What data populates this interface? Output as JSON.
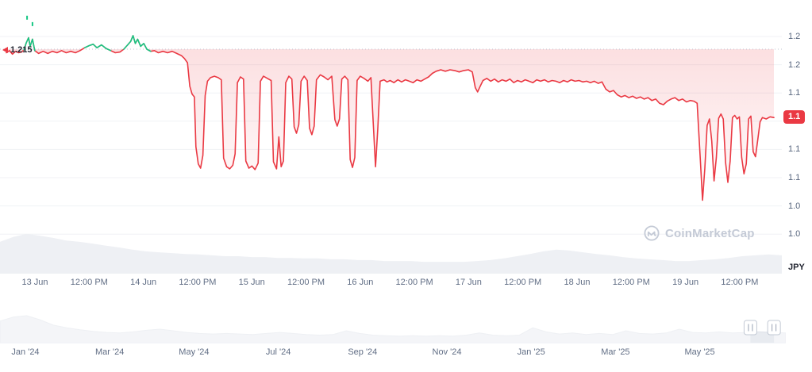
{
  "watermark": {
    "text": "CoinMarketCap"
  },
  "chart_data": {
    "type": "line",
    "y_axis_unit": "JPY",
    "y_axis_labels": [
      "1.2",
      "1.2",
      "1.1",
      "1.1",
      "1.1",
      "1.1",
      "1.0",
      "1.0"
    ],
    "x_axis_labels": [
      "13 Jun",
      "12:00 PM",
      "14 Jun",
      "12:00 PM",
      "15 Jun",
      "12:00 PM",
      "16 Jun",
      "12:00 PM",
      "17 Jun",
      "12:00 PM",
      "18 Jun",
      "12:00 PM",
      "19 Jun",
      "12:00 PM"
    ],
    "annotations": {
      "start_price_label": "1.215",
      "current_price_label": "1.1"
    },
    "reference_price": 1.215,
    "current_price": 1.119,
    "colors": {
      "line_down": "#ea3943",
      "line_up": "#16c784",
      "badge_bg": "#ea3943",
      "grid": "#f0f2f5",
      "ref_line": "#bfc6d2",
      "volume_fill": "#eef0f4",
      "nav_fill": "#e8ebf0",
      "axis_text": "#616e85",
      "watermark": "#c4cad6"
    },
    "series": [
      {
        "name": "price",
        "points": [
          [
            0.0,
            1.21
          ],
          [
            0.004,
            1.213
          ],
          [
            0.008,
            1.208
          ],
          [
            0.012,
            1.212
          ],
          [
            0.016,
            1.21
          ],
          [
            0.02,
            1.211
          ],
          [
            0.023,
            1.214
          ],
          [
            0.026,
            1.224
          ],
          [
            0.029,
            1.231
          ],
          [
            0.031,
            1.219
          ],
          [
            0.034,
            1.229
          ],
          [
            0.037,
            1.213
          ],
          [
            0.042,
            1.209
          ],
          [
            0.048,
            1.212
          ],
          [
            0.054,
            1.209
          ],
          [
            0.06,
            1.212
          ],
          [
            0.066,
            1.21
          ],
          [
            0.072,
            1.213
          ],
          [
            0.078,
            1.21
          ],
          [
            0.084,
            1.212
          ],
          [
            0.09,
            1.21
          ],
          [
            0.096,
            1.213
          ],
          [
            0.102,
            1.217
          ],
          [
            0.108,
            1.22
          ],
          [
            0.113,
            1.222
          ],
          [
            0.118,
            1.217
          ],
          [
            0.124,
            1.221
          ],
          [
            0.13,
            1.216
          ],
          [
            0.136,
            1.213
          ],
          [
            0.142,
            1.21
          ],
          [
            0.148,
            1.211
          ],
          [
            0.153,
            1.215
          ],
          [
            0.158,
            1.221
          ],
          [
            0.162,
            1.226
          ],
          [
            0.165,
            1.234
          ],
          [
            0.168,
            1.223
          ],
          [
            0.171,
            1.229
          ],
          [
            0.175,
            1.219
          ],
          [
            0.179,
            1.223
          ],
          [
            0.183,
            1.215
          ],
          [
            0.188,
            1.212
          ],
          [
            0.193,
            1.213
          ],
          [
            0.198,
            1.21
          ],
          [
            0.204,
            1.212
          ],
          [
            0.21,
            1.21
          ],
          [
            0.216,
            1.212
          ],
          [
            0.222,
            1.209
          ],
          [
            0.228,
            1.206
          ],
          [
            0.232,
            1.202
          ],
          [
            0.236,
            1.196
          ],
          [
            0.239,
            1.163
          ],
          [
            0.242,
            1.152
          ],
          [
            0.245,
            1.148
          ],
          [
            0.247,
            1.078
          ],
          [
            0.25,
            1.054
          ],
          [
            0.253,
            1.048
          ],
          [
            0.256,
            1.066
          ],
          [
            0.259,
            1.15
          ],
          [
            0.262,
            1.17
          ],
          [
            0.266,
            1.175
          ],
          [
            0.271,
            1.177
          ],
          [
            0.276,
            1.175
          ],
          [
            0.28,
            1.172
          ],
          [
            0.283,
            1.062
          ],
          [
            0.287,
            1.05
          ],
          [
            0.291,
            1.047
          ],
          [
            0.295,
            1.052
          ],
          [
            0.298,
            1.068
          ],
          [
            0.301,
            1.168
          ],
          [
            0.305,
            1.176
          ],
          [
            0.309,
            1.173
          ],
          [
            0.312,
            1.058
          ],
          [
            0.316,
            1.048
          ],
          [
            0.32,
            1.051
          ],
          [
            0.324,
            1.046
          ],
          [
            0.328,
            1.055
          ],
          [
            0.331,
            1.17
          ],
          [
            0.335,
            1.177
          ],
          [
            0.34,
            1.174
          ],
          [
            0.345,
            1.171
          ],
          [
            0.348,
            1.057
          ],
          [
            0.352,
            1.047
          ],
          [
            0.355,
            1.092
          ],
          [
            0.358,
            1.05
          ],
          [
            0.361,
            1.058
          ],
          [
            0.364,
            1.168
          ],
          [
            0.368,
            1.177
          ],
          [
            0.372,
            1.173
          ],
          [
            0.375,
            1.106
          ],
          [
            0.378,
            1.097
          ],
          [
            0.381,
            1.109
          ],
          [
            0.384,
            1.17
          ],
          [
            0.388,
            1.177
          ],
          [
            0.392,
            1.171
          ],
          [
            0.395,
            1.104
          ],
          [
            0.398,
            1.095
          ],
          [
            0.401,
            1.107
          ],
          [
            0.404,
            1.172
          ],
          [
            0.409,
            1.179
          ],
          [
            0.414,
            1.176
          ],
          [
            0.419,
            1.172
          ],
          [
            0.424,
            1.177
          ],
          [
            0.428,
            1.116
          ],
          [
            0.431,
            1.107
          ],
          [
            0.434,
            1.117
          ],
          [
            0.437,
            1.173
          ],
          [
            0.441,
            1.177
          ],
          [
            0.445,
            1.172
          ],
          [
            0.448,
            1.06
          ],
          [
            0.451,
            1.049
          ],
          [
            0.454,
            1.063
          ],
          [
            0.457,
            1.171
          ],
          [
            0.461,
            1.177
          ],
          [
            0.466,
            1.174
          ],
          [
            0.471,
            1.17
          ],
          [
            0.475,
            1.175
          ],
          [
            0.478,
            1.112
          ],
          [
            0.481,
            1.05
          ],
          [
            0.484,
            1.104
          ],
          [
            0.487,
            1.17
          ],
          [
            0.492,
            1.172
          ],
          [
            0.496,
            1.169
          ],
          [
            0.5,
            1.171
          ],
          [
            0.505,
            1.168
          ],
          [
            0.51,
            1.172
          ],
          [
            0.515,
            1.169
          ],
          [
            0.52,
            1.172
          ],
          [
            0.525,
            1.17
          ],
          [
            0.53,
            1.168
          ],
          [
            0.535,
            1.172
          ],
          [
            0.54,
            1.17
          ],
          [
            0.545,
            1.173
          ],
          [
            0.55,
            1.176
          ],
          [
            0.555,
            1.181
          ],
          [
            0.56,
            1.184
          ],
          [
            0.566,
            1.186
          ],
          [
            0.572,
            1.184
          ],
          [
            0.578,
            1.186
          ],
          [
            0.584,
            1.185
          ],
          [
            0.59,
            1.183
          ],
          [
            0.596,
            1.185
          ],
          [
            0.602,
            1.186
          ],
          [
            0.607,
            1.183
          ],
          [
            0.611,
            1.161
          ],
          [
            0.614,
            1.155
          ],
          [
            0.617,
            1.162
          ],
          [
            0.621,
            1.171
          ],
          [
            0.626,
            1.174
          ],
          [
            0.631,
            1.17
          ],
          [
            0.636,
            1.173
          ],
          [
            0.641,
            1.169
          ],
          [
            0.646,
            1.172
          ],
          [
            0.651,
            1.17
          ],
          [
            0.656,
            1.173
          ],
          [
            0.661,
            1.168
          ],
          [
            0.666,
            1.171
          ],
          [
            0.671,
            1.169
          ],
          [
            0.676,
            1.172
          ],
          [
            0.681,
            1.17
          ],
          [
            0.686,
            1.168
          ],
          [
            0.691,
            1.172
          ],
          [
            0.696,
            1.17
          ],
          [
            0.701,
            1.172
          ],
          [
            0.706,
            1.169
          ],
          [
            0.711,
            1.171
          ],
          [
            0.716,
            1.17
          ],
          [
            0.721,
            1.168
          ],
          [
            0.726,
            1.171
          ],
          [
            0.731,
            1.169
          ],
          [
            0.736,
            1.172
          ],
          [
            0.741,
            1.17
          ],
          [
            0.746,
            1.171
          ],
          [
            0.751,
            1.169
          ],
          [
            0.756,
            1.17
          ],
          [
            0.761,
            1.168
          ],
          [
            0.766,
            1.17
          ],
          [
            0.771,
            1.167
          ],
          [
            0.776,
            1.169
          ],
          [
            0.781,
            1.159
          ],
          [
            0.786,
            1.155
          ],
          [
            0.791,
            1.157
          ],
          [
            0.796,
            1.151
          ],
          [
            0.801,
            1.148
          ],
          [
            0.806,
            1.15
          ],
          [
            0.811,
            1.147
          ],
          [
            0.816,
            1.149
          ],
          [
            0.821,
            1.146
          ],
          [
            0.826,
            1.148
          ],
          [
            0.831,
            1.145
          ],
          [
            0.836,
            1.147
          ],
          [
            0.841,
            1.143
          ],
          [
            0.846,
            1.145
          ],
          [
            0.851,
            1.139
          ],
          [
            0.856,
            1.137
          ],
          [
            0.861,
            1.142
          ],
          [
            0.866,
            1.145
          ],
          [
            0.871,
            1.147
          ],
          [
            0.876,
            1.143
          ],
          [
            0.881,
            1.145
          ],
          [
            0.886,
            1.141
          ],
          [
            0.891,
            1.143
          ],
          [
            0.896,
            1.142
          ],
          [
            0.9,
            1.139
          ],
          [
            0.904,
            1.062
          ],
          [
            0.907,
            1.003
          ],
          [
            0.91,
            1.048
          ],
          [
            0.913,
            1.108
          ],
          [
            0.916,
            1.117
          ],
          [
            0.919,
            1.086
          ],
          [
            0.922,
            1.03
          ],
          [
            0.925,
            1.063
          ],
          [
            0.928,
            1.118
          ],
          [
            0.931,
            1.124
          ],
          [
            0.934,
            1.117
          ],
          [
            0.937,
            1.056
          ],
          [
            0.94,
            1.028
          ],
          [
            0.943,
            1.058
          ],
          [
            0.946,
            1.119
          ],
          [
            0.949,
            1.122
          ],
          [
            0.952,
            1.117
          ],
          [
            0.955,
            1.12
          ],
          [
            0.958,
            1.063
          ],
          [
            0.961,
            1.04
          ],
          [
            0.964,
            1.054
          ],
          [
            0.967,
            1.117
          ],
          [
            0.97,
            1.121
          ],
          [
            0.973,
            1.071
          ],
          [
            0.976,
            1.064
          ],
          [
            0.979,
            1.088
          ],
          [
            0.982,
            1.113
          ],
          [
            0.985,
            1.119
          ],
          [
            0.99,
            1.117
          ],
          [
            0.995,
            1.12
          ],
          [
            1.0,
            1.119
          ]
        ]
      }
    ],
    "green_ranges": [
      [
        0.022,
        0.038
      ],
      [
        0.1,
        0.137
      ],
      [
        0.151,
        0.19
      ]
    ],
    "green_ticks": [
      [
        0.027,
        1.262
      ],
      [
        0.034,
        1.253
      ]
    ],
    "volume": {
      "name": "volume",
      "values": [
        0.73,
        0.84,
        0.91,
        0.87,
        0.82,
        0.76,
        0.73,
        0.69,
        0.64,
        0.6,
        0.55,
        0.51,
        0.49,
        0.47,
        0.45,
        0.44,
        0.42,
        0.4,
        0.4,
        0.38,
        0.38,
        0.36,
        0.36,
        0.35,
        0.35,
        0.33,
        0.33,
        0.31,
        0.31,
        0.29,
        0.29,
        0.29,
        0.27,
        0.27,
        0.27,
        0.27,
        0.29,
        0.31,
        0.35,
        0.4,
        0.45,
        0.51,
        0.55,
        0.53,
        0.49,
        0.45,
        0.42,
        0.38,
        0.35,
        0.33,
        0.31,
        0.29,
        0.29,
        0.31,
        0.33,
        0.36,
        0.4,
        0.42,
        0.44,
        0.42
      ]
    },
    "navigator": {
      "values": [
        0.8,
        0.95,
        1.0,
        0.85,
        0.65,
        0.55,
        0.48,
        0.42,
        0.38,
        0.36,
        0.4,
        0.46,
        0.5,
        0.44,
        0.38,
        0.34,
        0.32,
        0.34,
        0.32,
        0.3,
        0.34,
        0.38,
        0.34,
        0.3,
        0.28,
        0.3,
        0.44,
        0.34,
        0.28,
        0.26,
        0.24,
        0.26,
        0.24,
        0.26,
        0.24,
        0.28,
        0.36,
        0.28,
        0.26,
        0.28,
        0.55,
        0.4,
        0.32,
        0.36,
        0.3,
        0.34,
        0.3,
        0.44,
        0.34,
        0.32,
        0.36,
        0.5,
        0.38,
        0.36,
        0.4,
        0.36,
        0.38,
        0.4,
        0.38,
        0.36
      ],
      "x_labels": [
        "Jan '24",
        "Mar '24",
        "May '24",
        "Jul '24",
        "Sep '24",
        "Nov '24",
        "Jan '25",
        "Mar '25",
        "May '25"
      ],
      "selected_range": [
        0.955,
        0.985
      ]
    }
  }
}
